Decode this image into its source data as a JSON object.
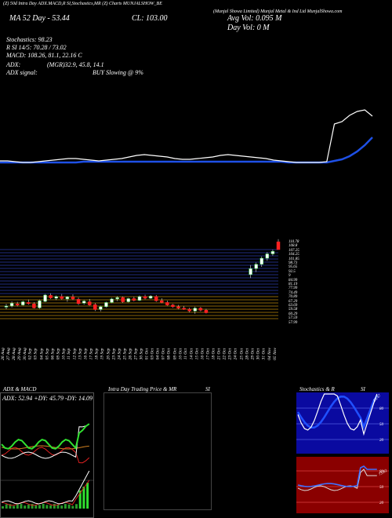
{
  "header": {
    "top_line": "(Z) 50d Intra Day ADX.MACD,R          SI,Stochastics,MR          (Z) Charts MUNJALSHOW_BE",
    "title_right": "(Munjal Showa Limited) Munjal Metal & Ind Ltd MunjalShowa.com",
    "ma_line": "MA 52 Day - 53.44",
    "close": "CL: 103.00",
    "avg_vol": "Avg Vol: 0.095 M",
    "day_vol": "Day Vol: 0  M"
  },
  "indicators": {
    "stochastics": "Stochastics: 98.23",
    "rsi": "R           SI 14/5: 70.28 / 73.02",
    "macd": "MACD: 108.26,  81.1,  22.16  C",
    "adx": "ADX:",
    "adx_vals": "(MGR)32.9,  45.8,  14.1",
    "adx_signal": "ADX  signal:",
    "adx_signal_val": "BUY Slowing @ 9%"
  },
  "price_scale": [
    "110.78",
    "108.8",
    "107.25",
    "104.25",
    "101.85",
    "98.73",
    "95.65",
    "92.5",
    "9",
    "84.99",
    "81.19",
    "77.99",
    "74.49",
    "70.89",
    "67.29",
    "63.69",
    "59.58",
    "60.29",
    "57.59",
    "57.99"
  ],
  "date_labels": [
    "26 Aug",
    "27 Aug",
    "28 Aug",
    "29 Aug",
    "30 Aug",
    "02 Sep",
    "03 Sep",
    "04 Sep",
    "05 Sep",
    "06 Sep",
    "09 Sep",
    "10 Sep",
    "11 Sep",
    "12 Sep",
    "13 Sep",
    "16 Sep",
    "17 Sep",
    "18 Sep",
    "19 Sep",
    "20 Sep",
    "23 Sep",
    "24 Sep",
    "25 Sep",
    "26 Sep",
    "27 Sep",
    "30 Sep",
    "01 Oct",
    "03 Oct",
    "04 Oct",
    "07 Oct",
    "08 Oct",
    "09 Oct",
    "10 Oct",
    "11 Oct",
    "14 Oct",
    "15 Oct",
    "16 Oct",
    "17 Oct",
    "18 Oct",
    "21 Oct",
    "22 Oct",
    "23 Oct",
    "24 Oct",
    "25 Oct",
    "28 Oct",
    "29 Oct",
    "30 Oct",
    "31 Oct",
    "04 Nov",
    "05 Nov"
  ],
  "panels": {
    "adx_title": "ADX  & MACD",
    "adx_values": "ADX: 52.94  +DY: 45.79  -DY: 14.09",
    "intraday_title": "Intra  Day Trading Price  & MR",
    "intraday_si": "SI",
    "stoch_title": "Stochastics & R",
    "stoch_si": "SI",
    "stoch_ticks": [
      "80",
      "50",
      "20"
    ],
    "rsi_ticks": [
      "80",
      "50",
      "20"
    ],
    "stoch_val": "95.47",
    "rsi_val": "73.82"
  },
  "chart_data": {
    "type": "candlestick",
    "ohlc": [
      [
        59.6,
        60.4,
        58.9,
        59.8
      ],
      [
        59.8,
        61.1,
        59.4,
        60.6
      ],
      [
        60.4,
        61.0,
        59.7,
        60.2
      ],
      [
        60.1,
        61.3,
        59.9,
        61.0
      ],
      [
        60.8,
        61.6,
        60.2,
        60.5
      ],
      [
        60.4,
        60.9,
        59.1,
        59.3
      ],
      [
        59.3,
        61.6,
        59.0,
        61.3
      ],
      [
        61.1,
        63.2,
        60.9,
        62.9
      ],
      [
        62.8,
        63.4,
        61.8,
        62.1
      ],
      [
        62.0,
        62.8,
        61.5,
        62.5
      ],
      [
        62.5,
        63.2,
        61.6,
        61.9
      ],
      [
        61.8,
        62.6,
        61.0,
        62.4
      ],
      [
        62.4,
        63.1,
        61.5,
        61.8
      ],
      [
        61.7,
        62.2,
        60.1,
        60.5
      ],
      [
        60.6,
        61.5,
        60.2,
        61.2
      ],
      [
        61.0,
        61.8,
        59.9,
        60.1
      ],
      [
        60.2,
        60.6,
        58.4,
        58.8
      ],
      [
        58.8,
        59.9,
        58.3,
        59.6
      ],
      [
        59.6,
        61.0,
        59.4,
        60.8
      ],
      [
        60.8,
        62.1,
        60.6,
        61.8
      ],
      [
        61.8,
        62.6,
        61.2,
        62.2
      ],
      [
        62.2,
        62.5,
        60.7,
        61.0
      ],
      [
        61.0,
        62.1,
        60.8,
        61.9
      ],
      [
        61.9,
        62.4,
        61.1,
        61.4
      ],
      [
        61.4,
        62.8,
        61.2,
        62.5
      ],
      [
        62.5,
        63.0,
        61.7,
        62.0
      ],
      [
        62.0,
        62.9,
        61.8,
        62.6
      ],
      [
        62.5,
        62.9,
        61.0,
        61.3
      ],
      [
        61.3,
        62.0,
        60.6,
        60.8
      ],
      [
        60.8,
        61.3,
        59.9,
        60.1
      ],
      [
        60.1,
        60.4,
        59.3,
        59.6
      ],
      [
        59.6,
        60.1,
        58.9,
        59.2
      ],
      [
        59.2,
        59.8,
        58.7,
        58.9
      ],
      [
        58.9,
        59.3,
        58.0,
        58.4
      ],
      [
        58.4,
        59.6,
        57.6,
        59.2
      ],
      [
        59.2,
        59.5,
        58.3,
        58.6
      ],
      [
        58.6,
        59.0,
        57.7,
        57.9
      ],
      [
        null,
        null,
        null,
        null
      ],
      [
        null,
        null,
        null,
        null
      ],
      [
        null,
        null,
        null,
        null
      ],
      [
        null,
        null,
        null,
        null
      ],
      [
        null,
        null,
        null,
        null
      ],
      [
        null,
        null,
        null,
        null
      ],
      [
        null,
        null,
        null,
        null
      ],
      [
        88.5,
        94.0,
        86.5,
        92.0
      ],
      [
        92.0,
        95.5,
        90.0,
        94.5
      ],
      [
        94.5,
        99.0,
        93.0,
        98.0
      ],
      [
        98.0,
        101.5,
        96.5,
        100.5
      ],
      [
        100.5,
        103.0,
        99.5,
        102.0
      ],
      [
        107.5,
        109.0,
        103.0,
        103.0
      ]
    ]
  }
}
